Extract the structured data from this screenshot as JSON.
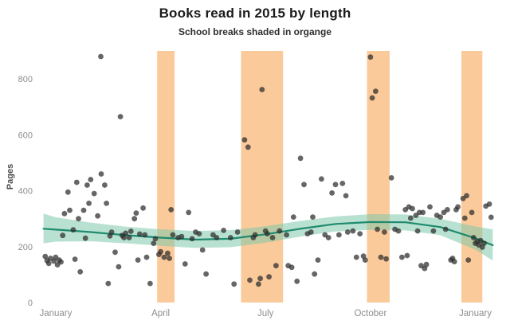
{
  "chart_data": {
    "type": "scatter",
    "title": "Books read in 2015 by length",
    "subtitle": "School breaks shaded in organge",
    "ylabel": "Pages",
    "xlabel": "",
    "grid": false,
    "legend": "none",
    "xlim": [
      -0.5,
      12.9
    ],
    "ylim": [
      0,
      900
    ],
    "y_ticks": [
      0,
      200,
      400,
      600,
      800
    ],
    "x_tick_positions": [
      0,
      3,
      6,
      9,
      12
    ],
    "x_tick_labels": [
      "January",
      "April",
      "July",
      "October",
      "January"
    ],
    "axis_text_color": "#8e8e8e",
    "point_color": "#2b2b2b",
    "point_opacity": 0.72,
    "point_radius": 3.4,
    "shaded_bands": {
      "label": "School breaks",
      "color": "#fbca9a",
      "ranges": [
        [
          2.9,
          3.4
        ],
        [
          5.3,
          6.5
        ],
        [
          8.9,
          9.55
        ],
        [
          11.6,
          12.2
        ]
      ]
    },
    "trend": {
      "label": "Smoothed trend with confidence band",
      "color": "#1f8a6e",
      "band_color": "#7fc8ab",
      "band_opacity": 0.55,
      "x": [
        -0.35,
        0,
        1,
        2,
        3,
        4,
        5,
        6,
        7,
        8,
        9,
        10,
        11,
        12,
        12.5
      ],
      "y": [
        264,
        261,
        252,
        241,
        232,
        225,
        228,
        244,
        264,
        281,
        288,
        287,
        270,
        230,
        205
      ],
      "upper": [
        318,
        305,
        286,
        271,
        262,
        256,
        259,
        273,
        292,
        308,
        316,
        315,
        300,
        272,
        262
      ],
      "lower": [
        212,
        218,
        219,
        212,
        203,
        195,
        198,
        214,
        236,
        254,
        260,
        258,
        241,
        189,
        150
      ]
    },
    "points": [
      [
        -0.3,
        165
      ],
      [
        -0.25,
        150
      ],
      [
        -0.2,
        140
      ],
      [
        -0.15,
        158
      ],
      [
        -0.05,
        148
      ],
      [
        0,
        162
      ],
      [
        0.05,
        135
      ],
      [
        0.1,
        152
      ],
      [
        0.15,
        145
      ],
      [
        0.2,
        240
      ],
      [
        0.25,
        318
      ],
      [
        0.35,
        395
      ],
      [
        0.4,
        330
      ],
      [
        0.5,
        260
      ],
      [
        0.55,
        155
      ],
      [
        0.6,
        430
      ],
      [
        0.65,
        300
      ],
      [
        0.7,
        110
      ],
      [
        0.8,
        330
      ],
      [
        0.85,
        230
      ],
      [
        0.9,
        420
      ],
      [
        0.95,
        355
      ],
      [
        1.0,
        440
      ],
      [
        1.1,
        390
      ],
      [
        1.2,
        310
      ],
      [
        1.29,
        880
      ],
      [
        1.3,
        460
      ],
      [
        1.4,
        420
      ],
      [
        1.45,
        355
      ],
      [
        1.5,
        68
      ],
      [
        1.55,
        238
      ],
      [
        1.6,
        252
      ],
      [
        1.7,
        180
      ],
      [
        1.8,
        128
      ],
      [
        1.85,
        665
      ],
      [
        1.9,
        240
      ],
      [
        1.95,
        232
      ],
      [
        2.0,
        248
      ],
      [
        2.1,
        232
      ],
      [
        2.15,
        255
      ],
      [
        2.25,
        300
      ],
      [
        2.3,
        320
      ],
      [
        2.35,
        152
      ],
      [
        2.4,
        245
      ],
      [
        2.5,
        338
      ],
      [
        2.55,
        242
      ],
      [
        2.6,
        162
      ],
      [
        2.7,
        68
      ],
      [
        2.8,
        212
      ],
      [
        2.85,
        228
      ],
      [
        2.95,
        172
      ],
      [
        3.0,
        182
      ],
      [
        3.1,
        162
      ],
      [
        3.2,
        176
      ],
      [
        3.25,
        158
      ],
      [
        3.3,
        332
      ],
      [
        3.35,
        242
      ],
      [
        3.5,
        232
      ],
      [
        3.6,
        236
      ],
      [
        3.7,
        138
      ],
      [
        3.8,
        322
      ],
      [
        3.9,
        228
      ],
      [
        4.0,
        252
      ],
      [
        4.1,
        246
      ],
      [
        4.2,
        188
      ],
      [
        4.3,
        102
      ],
      [
        4.5,
        242
      ],
      [
        4.6,
        232
      ],
      [
        4.8,
        258
      ],
      [
        5.0,
        232
      ],
      [
        5.1,
        66
      ],
      [
        5.2,
        252
      ],
      [
        5.4,
        582
      ],
      [
        5.5,
        556
      ],
      [
        5.55,
        80
      ],
      [
        5.65,
        232
      ],
      [
        5.7,
        242
      ],
      [
        5.8,
        66
      ],
      [
        5.85,
        86
      ],
      [
        5.9,
        762
      ],
      [
        6.0,
        256
      ],
      [
        6.05,
        246
      ],
      [
        6.1,
        92
      ],
      [
        6.2,
        232
      ],
      [
        6.3,
        132
      ],
      [
        6.4,
        256
      ],
      [
        6.6,
        242
      ],
      [
        6.65,
        132
      ],
      [
        6.75,
        126
      ],
      [
        6.8,
        306
      ],
      [
        6.9,
        76
      ],
      [
        7.0,
        516
      ],
      [
        7.1,
        422
      ],
      [
        7.2,
        246
      ],
      [
        7.3,
        252
      ],
      [
        7.35,
        306
      ],
      [
        7.4,
        102
      ],
      [
        7.5,
        152
      ],
      [
        7.6,
        442
      ],
      [
        7.7,
        242
      ],
      [
        7.8,
        232
      ],
      [
        7.9,
        392
      ],
      [
        8.0,
        422
      ],
      [
        8.1,
        242
      ],
      [
        8.2,
        426
      ],
      [
        8.3,
        382
      ],
      [
        8.35,
        252
      ],
      [
        8.5,
        256
      ],
      [
        8.6,
        162
      ],
      [
        8.7,
        246
      ],
      [
        8.8,
        166
      ],
      [
        8.85,
        152
      ],
      [
        9.0,
        878
      ],
      [
        9.05,
        732
      ],
      [
        9.15,
        756
      ],
      [
        9.2,
        262
      ],
      [
        9.3,
        162
      ],
      [
        9.4,
        252
      ],
      [
        9.45,
        156
      ],
      [
        9.6,
        446
      ],
      [
        9.7,
        262
      ],
      [
        9.8,
        256
      ],
      [
        9.9,
        162
      ],
      [
        10.0,
        332
      ],
      [
        10.05,
        168
      ],
      [
        10.1,
        342
      ],
      [
        10.15,
        302
      ],
      [
        10.2,
        336
      ],
      [
        10.3,
        312
      ],
      [
        10.35,
        256
      ],
      [
        10.4,
        322
      ],
      [
        10.45,
        132
      ],
      [
        10.5,
        322
      ],
      [
        10.55,
        122
      ],
      [
        10.6,
        136
      ],
      [
        10.7,
        342
      ],
      [
        10.8,
        256
      ],
      [
        10.9,
        312
      ],
      [
        11.0,
        306
      ],
      [
        11.1,
        322
      ],
      [
        11.15,
        262
      ],
      [
        11.2,
        332
      ],
      [
        11.3,
        152
      ],
      [
        11.35,
        158
      ],
      [
        11.4,
        146
      ],
      [
        11.45,
        332
      ],
      [
        11.5,
        342
      ],
      [
        11.65,
        372
      ],
      [
        11.7,
        302
      ],
      [
        11.75,
        382
      ],
      [
        11.8,
        152
      ],
      [
        11.9,
        322
      ],
      [
        11.95,
        232
      ],
      [
        12.0,
        212
      ],
      [
        12.05,
        218
      ],
      [
        12.1,
        206
      ],
      [
        12.15,
        222
      ],
      [
        12.2,
        198
      ],
      [
        12.25,
        212
      ],
      [
        12.3,
        345
      ],
      [
        12.4,
        352
      ],
      [
        12.45,
        305
      ]
    ]
  }
}
